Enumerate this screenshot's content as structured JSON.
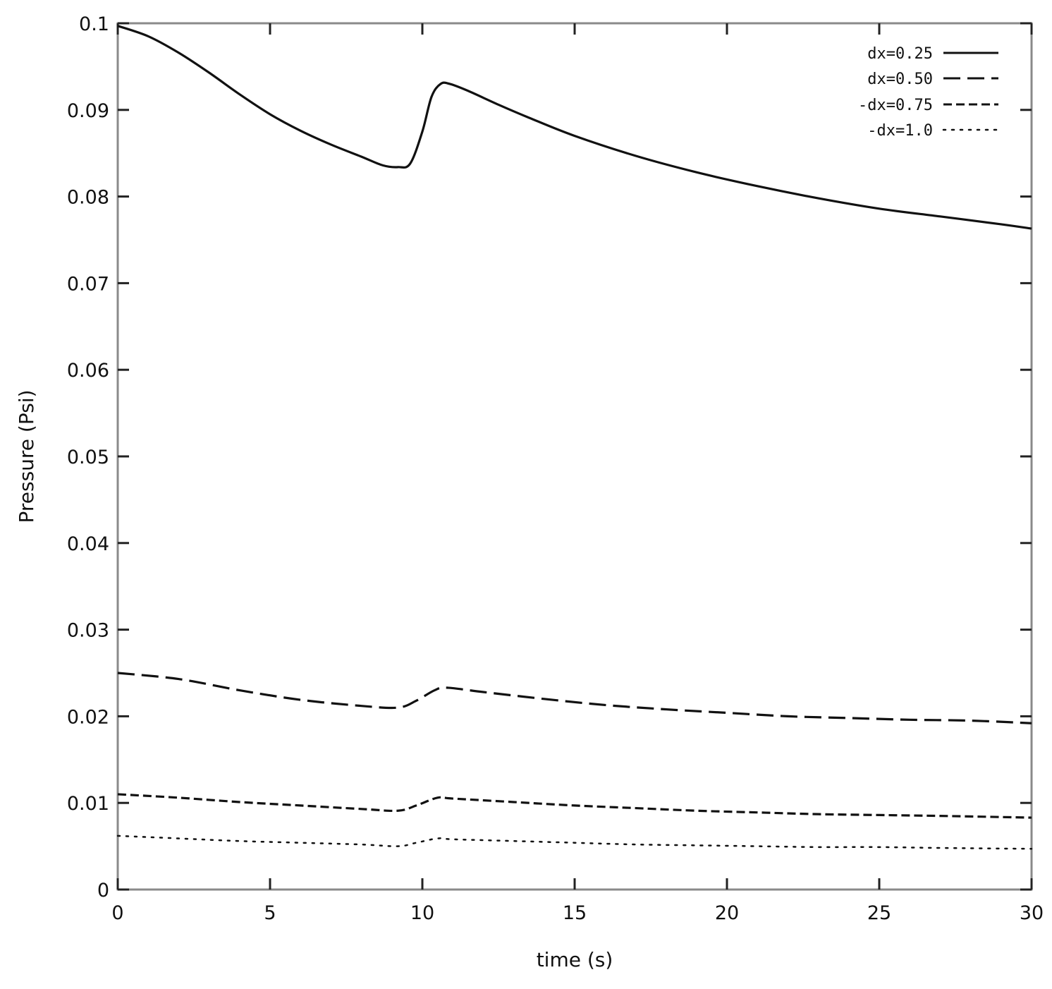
{
  "chart_data": {
    "type": "line",
    "title": "",
    "xlabel": "time (s)",
    "ylabel": "Pressure  (Psi)",
    "xlim": [
      0,
      30
    ],
    "ylim": [
      0,
      0.1
    ],
    "xticks": [
      0,
      5,
      10,
      15,
      20,
      25,
      30
    ],
    "yticks": [
      0,
      0.01,
      0.02,
      0.03,
      0.04,
      0.05,
      0.06,
      0.07,
      0.08,
      0.09,
      0.1
    ],
    "xtick_labels": [
      "0",
      "5",
      "10",
      "15",
      "20",
      "25",
      "30"
    ],
    "ytick_labels": [
      "0",
      "0.01",
      "0.02",
      "0.03",
      "0.04",
      "0.05",
      "0.06",
      "0.07",
      "0.08",
      "0.09",
      "0.1"
    ],
    "grid": false,
    "legend_position": "top-right",
    "series": [
      {
        "name": "dx=0.25",
        "line_style": "solid",
        "points": [
          [
            0,
            0.0997
          ],
          [
            1,
            0.0985
          ],
          [
            2,
            0.0966
          ],
          [
            3,
            0.0943
          ],
          [
            4,
            0.0918
          ],
          [
            5,
            0.0895
          ],
          [
            6,
            0.0876
          ],
          [
            7,
            0.086
          ],
          [
            8,
            0.0846
          ],
          [
            8.7,
            0.0836
          ],
          [
            9.2,
            0.0834
          ],
          [
            9.6,
            0.0838
          ],
          [
            10.0,
            0.0875
          ],
          [
            10.3,
            0.0915
          ],
          [
            10.6,
            0.093
          ],
          [
            10.9,
            0.093
          ],
          [
            11.5,
            0.0922
          ],
          [
            12.5,
            0.0906
          ],
          [
            13.5,
            0.0891
          ],
          [
            15,
            0.087
          ],
          [
            17,
            0.0847
          ],
          [
            19,
            0.0828
          ],
          [
            21,
            0.0812
          ],
          [
            23,
            0.0798
          ],
          [
            25,
            0.0786
          ],
          [
            27,
            0.0777
          ],
          [
            29,
            0.0768
          ],
          [
            30,
            0.0763
          ]
        ]
      },
      {
        "name": "dx=0.50",
        "line_style": "long-dash",
        "points": [
          [
            0,
            0.025
          ],
          [
            2,
            0.0243
          ],
          [
            4,
            0.023
          ],
          [
            6,
            0.0219
          ],
          [
            8,
            0.0212
          ],
          [
            9.2,
            0.021
          ],
          [
            9.8,
            0.0218
          ],
          [
            10.4,
            0.023
          ],
          [
            10.8,
            0.0233
          ],
          [
            12,
            0.0228
          ],
          [
            14,
            0.022
          ],
          [
            16,
            0.0213
          ],
          [
            18,
            0.0208
          ],
          [
            20,
            0.0204
          ],
          [
            22,
            0.02
          ],
          [
            24,
            0.0198
          ],
          [
            26,
            0.0196
          ],
          [
            28,
            0.0195
          ],
          [
            30,
            0.0192
          ]
        ]
      },
      {
        "name": "-dx=0.75",
        "line_style": "dash",
        "points": [
          [
            0,
            0.011
          ],
          [
            2,
            0.0106
          ],
          [
            4,
            0.0101
          ],
          [
            6,
            0.0097
          ],
          [
            8,
            0.0093
          ],
          [
            9.2,
            0.0091
          ],
          [
            9.8,
            0.0097
          ],
          [
            10.5,
            0.0106
          ],
          [
            11,
            0.0105
          ],
          [
            13,
            0.0101
          ],
          [
            15,
            0.0097
          ],
          [
            17,
            0.0094
          ],
          [
            19,
            0.0091
          ],
          [
            21,
            0.0089
          ],
          [
            23,
            0.0087
          ],
          [
            25,
            0.0086
          ],
          [
            27,
            0.0085
          ],
          [
            30,
            0.0083
          ]
        ]
      },
      {
        "name": "-dx=1.0",
        "line_style": "dot",
        "points": [
          [
            0,
            0.0062
          ],
          [
            2,
            0.0059
          ],
          [
            4,
            0.0056
          ],
          [
            6,
            0.0054
          ],
          [
            8,
            0.0052
          ],
          [
            9.2,
            0.005
          ],
          [
            9.8,
            0.0054
          ],
          [
            10.5,
            0.0059
          ],
          [
            11,
            0.0058
          ],
          [
            13,
            0.0056
          ],
          [
            15,
            0.0054
          ],
          [
            17,
            0.0052
          ],
          [
            19,
            0.0051
          ],
          [
            21,
            0.005
          ],
          [
            23,
            0.0049
          ],
          [
            25,
            0.0049
          ],
          [
            27,
            0.0048
          ],
          [
            30,
            0.0047
          ]
        ]
      }
    ]
  }
}
